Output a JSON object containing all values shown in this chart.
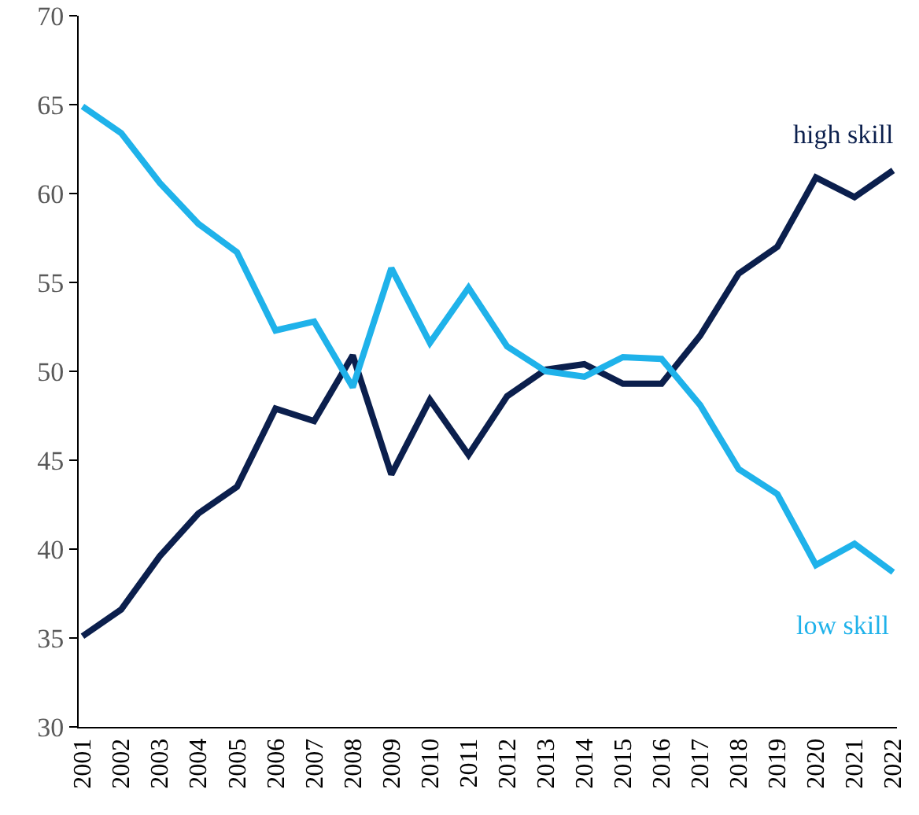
{
  "chart_data": {
    "type": "line",
    "categories": [
      "2001",
      "2002",
      "2003",
      "2004",
      "2005",
      "2006",
      "2007",
      "2008",
      "2009",
      "2010",
      "2011",
      "2012",
      "2013",
      "2014",
      "2015",
      "2016",
      "2017",
      "2018",
      "2019",
      "2020",
      "2021",
      "2022"
    ],
    "series": [
      {
        "name": "high skill",
        "color": "#0b1f4d",
        "values": [
          35.1,
          36.6,
          39.6,
          42.0,
          43.5,
          47.9,
          47.2,
          50.9,
          44.2,
          48.4,
          45.3,
          48.6,
          50.1,
          50.4,
          49.3,
          49.3,
          52.0,
          55.5,
          57.0,
          60.9,
          59.8,
          61.3
        ]
      },
      {
        "name": "low skill",
        "color": "#1fb2ea",
        "values": [
          64.9,
          63.4,
          60.6,
          58.3,
          56.7,
          52.3,
          52.8,
          49.1,
          55.8,
          51.6,
          54.7,
          51.4,
          50.0,
          49.7,
          50.8,
          50.7,
          48.1,
          44.5,
          43.1,
          39.1,
          40.3,
          38.7
        ]
      }
    ],
    "ylim": [
      30,
      70
    ],
    "yticks": [
      30,
      35,
      40,
      45,
      50,
      55,
      60,
      65,
      70
    ],
    "grid": false,
    "legend": false,
    "marker": "none",
    "line_style": "solid"
  }
}
